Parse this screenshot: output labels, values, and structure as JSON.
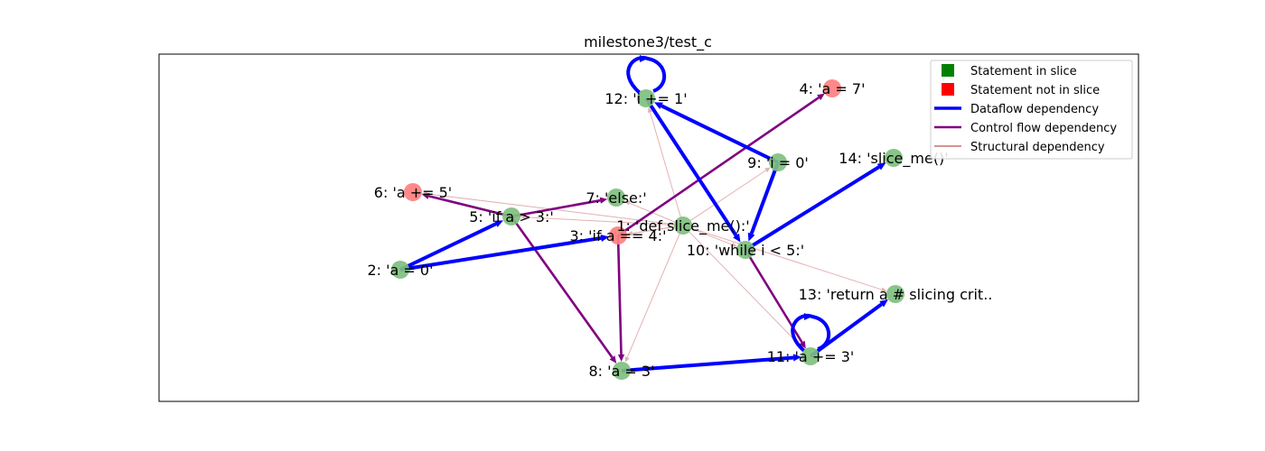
{
  "figure": {
    "title": "milestone3/test_c"
  },
  "colors": {
    "in_slice": "#7fbf7f",
    "not_in_slice": "#ff7f7f",
    "dataflow": "#0000ff",
    "control": "#800080",
    "structural": "#e0a8a8",
    "legend_in_slice": "#008000",
    "legend_not_in_slice": "#ff0000",
    "legend_structural": "#a52a2a"
  },
  "legend": {
    "in_slice": "Statement in slice",
    "not_in_slice": "Statement not in slice",
    "dataflow": "Dataflow dependency",
    "control": "Control flow dependency",
    "structural": "Structural dependency"
  },
  "nodes": [
    {
      "id": "n1",
      "label": "1: 'def slice_me():'",
      "in_slice": true
    },
    {
      "id": "n2",
      "label": "2: 'a = 0'",
      "in_slice": true
    },
    {
      "id": "n3",
      "label": "3: 'if a == 4:'",
      "in_slice": false
    },
    {
      "id": "n4",
      "label": "4: 'a = 7'",
      "in_slice": false
    },
    {
      "id": "n5",
      "label": "5: 'if a > 3:'",
      "in_slice": true
    },
    {
      "id": "n6",
      "label": "6: 'a += 5'",
      "in_slice": false
    },
    {
      "id": "n7",
      "label": "7: 'else:'",
      "in_slice": true
    },
    {
      "id": "n8",
      "label": "8: 'a = 3'",
      "in_slice": true
    },
    {
      "id": "n9",
      "label": "9: 'i = 0'",
      "in_slice": true
    },
    {
      "id": "n10",
      "label": "10: 'while i < 5:'",
      "in_slice": true
    },
    {
      "id": "n11",
      "label": "11: 'a += 3'",
      "in_slice": true
    },
    {
      "id": "n12",
      "label": "12: 'i += 1'",
      "in_slice": true
    },
    {
      "id": "n13",
      "label": "13: 'return a # slicing crit..",
      "in_slice": true
    },
    {
      "id": "n14",
      "label": "14: 'slice_me()'",
      "in_slice": true
    }
  ],
  "edges": [
    {
      "from": "n1",
      "to": "n2",
      "kind": "structural"
    },
    {
      "from": "n1",
      "to": "n3",
      "kind": "structural"
    },
    {
      "from": "n1",
      "to": "n5",
      "kind": "structural"
    },
    {
      "from": "n1",
      "to": "n6",
      "kind": "structural"
    },
    {
      "from": "n1",
      "to": "n7",
      "kind": "structural"
    },
    {
      "from": "n1",
      "to": "n8",
      "kind": "structural"
    },
    {
      "from": "n1",
      "to": "n9",
      "kind": "structural"
    },
    {
      "from": "n1",
      "to": "n10",
      "kind": "structural"
    },
    {
      "from": "n1",
      "to": "n11",
      "kind": "structural"
    },
    {
      "from": "n1",
      "to": "n12",
      "kind": "structural"
    },
    {
      "from": "n1",
      "to": "n13",
      "kind": "structural"
    },
    {
      "from": "n2",
      "to": "n5",
      "kind": "dataflow"
    },
    {
      "from": "n2",
      "to": "n3",
      "kind": "dataflow"
    },
    {
      "from": "n3",
      "to": "n4",
      "kind": "control"
    },
    {
      "from": "n3",
      "to": "n8",
      "kind": "control"
    },
    {
      "from": "n5",
      "to": "n6",
      "kind": "control"
    },
    {
      "from": "n5",
      "to": "n7",
      "kind": "control"
    },
    {
      "from": "n5",
      "to": "n8",
      "kind": "control"
    },
    {
      "from": "n8",
      "to": "n11",
      "kind": "dataflow"
    },
    {
      "from": "n9",
      "to": "n12",
      "kind": "dataflow"
    },
    {
      "from": "n9",
      "to": "n10",
      "kind": "dataflow"
    },
    {
      "from": "n12",
      "to": "n10",
      "kind": "dataflow"
    },
    {
      "from": "n10",
      "to": "n14",
      "kind": "dataflow"
    },
    {
      "from": "n10",
      "to": "n11",
      "kind": "control"
    },
    {
      "from": "n11",
      "to": "n13",
      "kind": "dataflow"
    },
    {
      "from": "n11",
      "to": "n11",
      "kind": "dataflow"
    },
    {
      "from": "n12",
      "to": "n12",
      "kind": "dataflow"
    }
  ]
}
